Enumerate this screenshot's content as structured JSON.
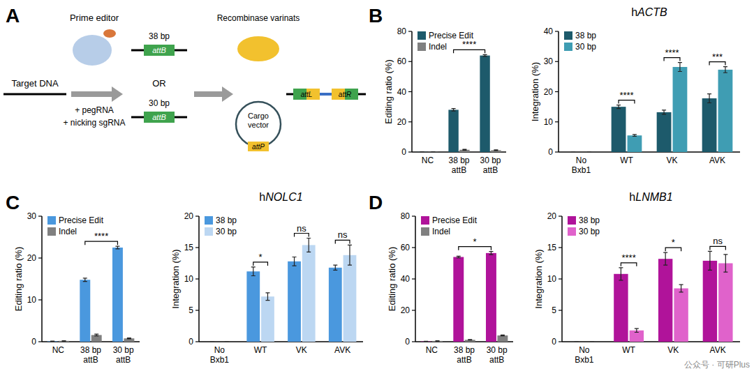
{
  "diagram": {
    "label": "A",
    "target": "Target DNA",
    "editor": "Prime editor",
    "reagents": [
      "+ pegRNA",
      "+ nicking sgRNA"
    ],
    "options": [
      {
        "length": "38 bp",
        "site": "attB"
      },
      {
        "length": "30 bp",
        "site": "attB"
      }
    ],
    "or": "OR",
    "recombinase": "Recombinase varinats",
    "cargo": "Cargo vector",
    "cargo_site": "attP",
    "products": [
      "attL",
      "attR"
    ]
  },
  "watermark": "公众号 · 可研Plus",
  "chart_data": [
    {
      "type": "bar",
      "panel_label": "B",
      "ylabel": "Editing ratio (%)",
      "categories": [
        "NC",
        "38 bp attB",
        "30 bp attB"
      ],
      "series": [
        {
          "name": "Precise Edit",
          "color": "#1d5a6b",
          "values": [
            0.1,
            28,
            64
          ],
          "errors": [
            0.05,
            0.8,
            0.6
          ]
        },
        {
          "name": "Indel",
          "color": "#808080",
          "values": [
            0.1,
            1.5,
            1.2
          ],
          "errors": [
            0.05,
            0.3,
            0.2
          ]
        }
      ],
      "ylim": [
        0,
        80
      ],
      "yticks": [
        0,
        20,
        40,
        60,
        80
      ],
      "legend": "upper-left",
      "significance": [
        {
          "categories": [
            "38 bp attB",
            "30 bp attB"
          ],
          "text": "****"
        }
      ]
    },
    {
      "type": "bar",
      "title": "hACTB",
      "ylabel": "Integration (%)",
      "categories": [
        "No Bxb1",
        "WT",
        "VK",
        "AVK"
      ],
      "series": [
        {
          "name": "38 bp",
          "color": "#1d5a6b",
          "values": [
            0,
            15,
            13.2,
            17.8
          ],
          "errors": [
            0,
            0.6,
            0.7,
            1.5
          ]
        },
        {
          "name": "30 bp",
          "color": "#3f9db3",
          "values": [
            0,
            5.5,
            28.2,
            27.3
          ],
          "errors": [
            0,
            0.3,
            1.5,
            1.0
          ]
        }
      ],
      "ylim": [
        0,
        40
      ],
      "yticks": [
        0,
        10,
        20,
        30,
        40
      ],
      "legend": "upper-left",
      "significance": [
        {
          "category": "WT",
          "text": "****"
        },
        {
          "category": "VK",
          "text": "****"
        },
        {
          "category": "AVK",
          "text": "***"
        }
      ]
    },
    {
      "type": "bar",
      "panel_label": "C",
      "ylabel": "Editing ratio (%)",
      "categories": [
        "NC",
        "38 bp attB",
        "30 bp attB"
      ],
      "series": [
        {
          "name": "Precise Edit",
          "color": "#4a98de",
          "values": [
            0.1,
            14.8,
            22.5
          ],
          "errors": [
            0.05,
            0.4,
            0.3
          ]
        },
        {
          "name": "Indel",
          "color": "#808080",
          "values": [
            0.2,
            1.6,
            0.8
          ],
          "errors": [
            0.05,
            0.2,
            0.1
          ]
        }
      ],
      "ylim": [
        0,
        30
      ],
      "yticks": [
        0,
        10,
        20,
        30
      ],
      "legend": "upper-left",
      "significance": [
        {
          "categories": [
            "38 bp attB",
            "30 bp attB"
          ],
          "text": "****"
        }
      ]
    },
    {
      "type": "bar",
      "title": "hNOLC1",
      "ylabel": "Integration (%)",
      "categories": [
        "No Bxb1",
        "WT",
        "VK",
        "AVK"
      ],
      "series": [
        {
          "name": "38 bp",
          "color": "#4a98de",
          "values": [
            0,
            11.2,
            12.8,
            11.8
          ],
          "errors": [
            0,
            0.7,
            0.7,
            0.4
          ]
        },
        {
          "name": "30 bp",
          "color": "#bcd7f2",
          "values": [
            0,
            7.2,
            15.4,
            13.8
          ],
          "errors": [
            0,
            0.6,
            1.1,
            1.6
          ]
        }
      ],
      "ylim": [
        0,
        20
      ],
      "yticks": [
        0,
        5,
        10,
        15,
        20
      ],
      "legend": "upper-left",
      "significance": [
        {
          "category": "WT",
          "text": "*"
        },
        {
          "category": "VK",
          "text": "ns"
        },
        {
          "category": "AVK",
          "text": "ns"
        }
      ]
    },
    {
      "type": "bar",
      "panel_label": "D",
      "ylabel": "Editing ratio (%)",
      "categories": [
        "NC",
        "38 bp attB",
        "30 bp attB"
      ],
      "series": [
        {
          "name": "Precise Edit",
          "color": "#b0139a",
          "values": [
            0.2,
            54,
            56.5
          ],
          "errors": [
            0.05,
            0.5,
            1
          ]
        },
        {
          "name": "Indel",
          "color": "#808080",
          "values": [
            0.5,
            1.2,
            4
          ],
          "errors": [
            0.1,
            0.2,
            0.3
          ]
        }
      ],
      "ylim": [
        0,
        80
      ],
      "yticks": [
        0,
        20,
        40,
        60,
        80
      ],
      "legend": "upper-left",
      "significance": [
        {
          "categories": [
            "38 bp attB",
            "30 bp attB"
          ],
          "text": "*"
        }
      ]
    },
    {
      "type": "bar",
      "title": "hLNMB1",
      "ylabel": "Integration (%)",
      "categories": [
        "No Bxb1",
        "WT",
        "VK",
        "AVK"
      ],
      "series": [
        {
          "name": "38 bp",
          "color": "#b0139a",
          "values": [
            0,
            10.8,
            13.2,
            12.9
          ],
          "errors": [
            0,
            1,
            1,
            1.5
          ]
        },
        {
          "name": "30 bp",
          "color": "#e062cb",
          "values": [
            0,
            1.8,
            8.5,
            12.5
          ],
          "errors": [
            0,
            0.3,
            0.6,
            1.4
          ]
        }
      ],
      "ylim": [
        0,
        20
      ],
      "yticks": [
        0,
        5,
        10,
        15,
        20
      ],
      "legend": "upper-left",
      "significance": [
        {
          "category": "WT",
          "text": "****"
        },
        {
          "category": "VK",
          "text": "*"
        },
        {
          "category": "AVK",
          "text": "ns"
        }
      ]
    }
  ]
}
